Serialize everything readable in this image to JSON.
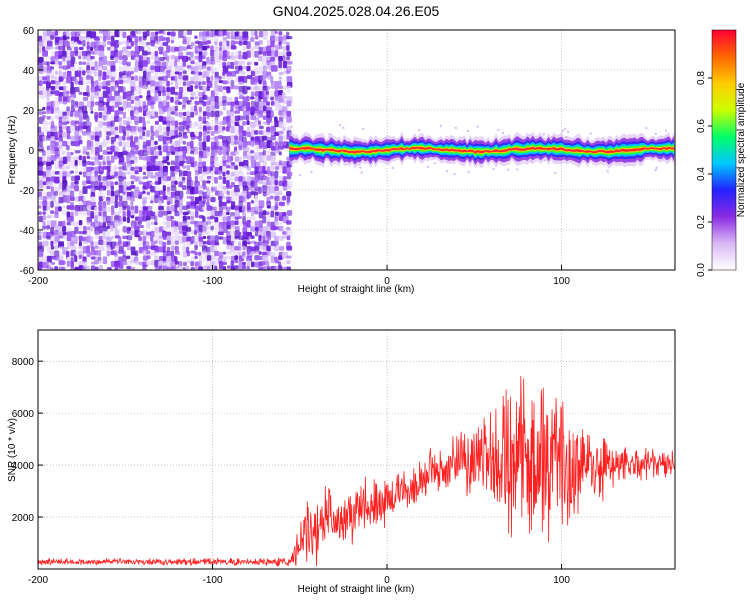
{
  "title": "GN04.2025.028.04.26.E05",
  "chart_data": [
    {
      "type": "heatmap",
      "xlabel": "Height of straight line (km)",
      "ylabel": "Frequency (Hz)",
      "xlim": [
        -200,
        165
      ],
      "ylim": [
        -60,
        60
      ],
      "xticks": [
        -200,
        -100,
        0,
        100
      ],
      "yticks": [
        -60,
        -40,
        -20,
        0,
        20,
        40,
        60
      ],
      "noise_region_x": [
        -200,
        -56
      ],
      "signal_region_x": [
        -56,
        165
      ],
      "signal_center_hz": 0,
      "signal_halfwidth_hz": 4,
      "colorbar": {
        "label": "Normalized spectral amplitude",
        "range": [
          0,
          1
        ],
        "ticks": [
          "0.0",
          "0.2",
          "0.4",
          "0.6",
          "0.8"
        ],
        "colors": [
          "#ffffff",
          "#d9b8f5",
          "#8a2be2",
          "#2222ff",
          "#00c8ff",
          "#00ff66",
          "#ccff00",
          "#ffcc00",
          "#ff6600",
          "#ff0033"
        ]
      },
      "grid": true
    },
    {
      "type": "line",
      "xlabel": "Height of straight line (km)",
      "ylabel": "SNR (10 * v/v)",
      "xlim": [
        -200,
        165
      ],
      "ylim": [
        0,
        9200
      ],
      "xticks": [
        -200,
        -100,
        0,
        100
      ],
      "yticks": [
        2000,
        4000,
        6000,
        8000
      ],
      "color": "#ff2020",
      "grid": true,
      "envelope": {
        "x": [
          -200,
          -100,
          -56,
          -50,
          -45,
          -40,
          -35,
          -30,
          -20,
          -10,
          -5,
          0,
          10,
          20,
          30,
          40,
          50,
          60,
          70,
          80,
          90,
          100,
          110,
          120,
          130,
          140,
          150,
          165
        ],
        "y": [
          280,
          280,
          280,
          900,
          1500,
          1400,
          2500,
          1900,
          2100,
          2600,
          2400,
          2700,
          3100,
          3500,
          3900,
          4100,
          4200,
          4300,
          4300,
          4200,
          4000,
          4100,
          4000,
          4000,
          4000,
          4000,
          4000,
          4000
        ],
        "amplitude": [
          150,
          150,
          200,
          900,
          1500,
          1500,
          1700,
          1200,
          1200,
          1300,
          1300,
          1000,
          900,
          1000,
          1100,
          1300,
          1800,
          2600,
          3400,
          3600,
          3600,
          3400,
          2600,
          2000,
          1200,
          800,
          700,
          600
        ]
      }
    }
  ]
}
